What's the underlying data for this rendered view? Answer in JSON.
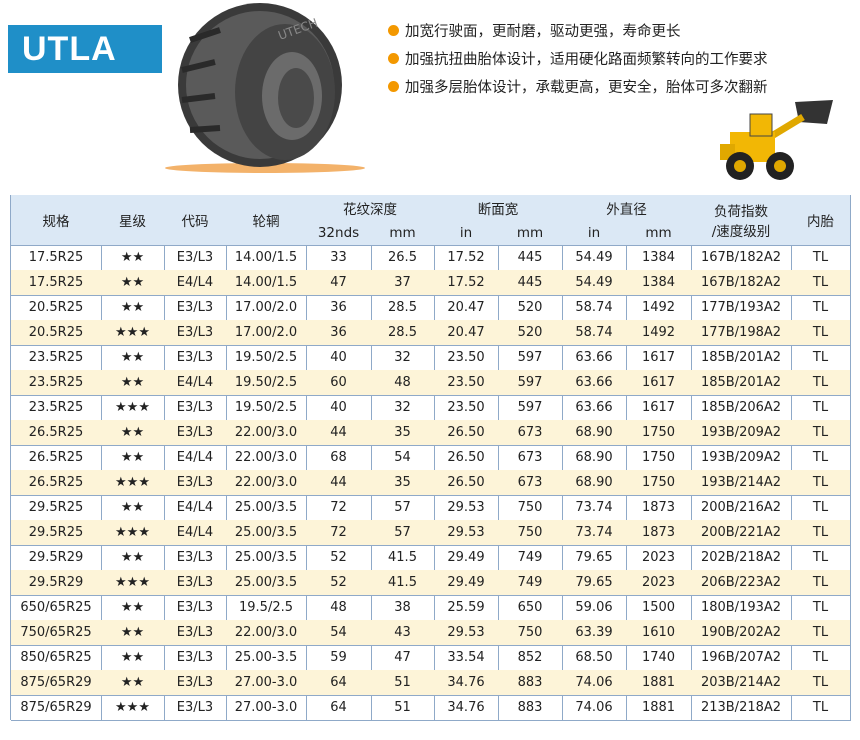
{
  "header": {
    "badge": "UTLA",
    "tire_brand": "UTECH",
    "bullets": [
      "加宽行驶面，更耐磨，驱动更强，寿命更长",
      "加强抗扭曲胎体设计，适用硬化路面频繁转向的工作要求",
      "加强多层胎体设计，承载更高，更安全，胎体可多次翻新"
    ]
  },
  "table": {
    "head": {
      "spec": "规格",
      "star": "星级",
      "code": "代码",
      "rim": "轮辋",
      "tread": "花纹深度",
      "tread_32": "32nds",
      "tread_mm": "mm",
      "width": "断面宽",
      "width_in": "in",
      "width_mm": "mm",
      "od": "外直径",
      "od_in": "in",
      "od_mm": "mm",
      "load_1": "负荷指数",
      "load_2": "/速度级别",
      "tube": "内胎"
    },
    "rows": [
      [
        "17.5R25",
        "★★",
        "E3/L3",
        "14.00/1.5",
        "33",
        "26.5",
        "17.52",
        "445",
        "54.49",
        "1384",
        "167B/182A2",
        "TL"
      ],
      [
        "17.5R25",
        "★★",
        "E4/L4",
        "14.00/1.5",
        "47",
        "37",
        "17.52",
        "445",
        "54.49",
        "1384",
        "167B/182A2",
        "TL"
      ],
      [
        "20.5R25",
        "★★",
        "E3/L3",
        "17.00/2.0",
        "36",
        "28.5",
        "20.47",
        "520",
        "58.74",
        "1492",
        "177B/193A2",
        "TL"
      ],
      [
        "20.5R25",
        "★★★",
        "E3/L3",
        "17.00/2.0",
        "36",
        "28.5",
        "20.47",
        "520",
        "58.74",
        "1492",
        "177B/198A2",
        "TL"
      ],
      [
        "23.5R25",
        "★★",
        "E3/L3",
        "19.50/2.5",
        "40",
        "32",
        "23.50",
        "597",
        "63.66",
        "1617",
        "185B/201A2",
        "TL"
      ],
      [
        "23.5R25",
        "★★",
        "E4/L4",
        "19.50/2.5",
        "60",
        "48",
        "23.50",
        "597",
        "63.66",
        "1617",
        "185B/201A2",
        "TL"
      ],
      [
        "23.5R25",
        "★★★",
        "E3/L3",
        "19.50/2.5",
        "40",
        "32",
        "23.50",
        "597",
        "63.66",
        "1617",
        "185B/206A2",
        "TL"
      ],
      [
        "26.5R25",
        "★★",
        "E3/L3",
        "22.00/3.0",
        "44",
        "35",
        "26.50",
        "673",
        "68.90",
        "1750",
        "193B/209A2",
        "TL"
      ],
      [
        "26.5R25",
        "★★",
        "E4/L4",
        "22.00/3.0",
        "68",
        "54",
        "26.50",
        "673",
        "68.90",
        "1750",
        "193B/209A2",
        "TL"
      ],
      [
        "26.5R25",
        "★★★",
        "E3/L3",
        "22.00/3.0",
        "44",
        "35",
        "26.50",
        "673",
        "68.90",
        "1750",
        "193B/214A2",
        "TL"
      ],
      [
        "29.5R25",
        "★★",
        "E4/L4",
        "25.00/3.5",
        "72",
        "57",
        "29.53",
        "750",
        "73.74",
        "1873",
        "200B/216A2",
        "TL"
      ],
      [
        "29.5R25",
        "★★★",
        "E4/L4",
        "25.00/3.5",
        "72",
        "57",
        "29.53",
        "750",
        "73.74",
        "1873",
        "200B/221A2",
        "TL"
      ],
      [
        "29.5R29",
        "★★",
        "E3/L3",
        "25.00/3.5",
        "52",
        "41.5",
        "29.49",
        "749",
        "79.65",
        "2023",
        "202B/218A2",
        "TL"
      ],
      [
        "29.5R29",
        "★★★",
        "E3/L3",
        "25.00/3.5",
        "52",
        "41.5",
        "29.49",
        "749",
        "79.65",
        "2023",
        "206B/223A2",
        "TL"
      ],
      [
        "650/65R25",
        "★★",
        "E3/L3",
        "19.5/2.5",
        "48",
        "38",
        "25.59",
        "650",
        "59.06",
        "1500",
        "180B/193A2",
        "TL"
      ],
      [
        "750/65R25",
        "★★",
        "E3/L3",
        "22.00/3.0",
        "54",
        "43",
        "29.53",
        "750",
        "63.39",
        "1610",
        "190B/202A2",
        "TL"
      ],
      [
        "850/65R25",
        "★★",
        "E3/L3",
        "25.00-3.5",
        "59",
        "47",
        "33.54",
        "852",
        "68.50",
        "1740",
        "196B/207A2",
        "TL"
      ],
      [
        "875/65R29",
        "★★",
        "E3/L3",
        "27.00-3.0",
        "64",
        "51",
        "34.76",
        "883",
        "74.06",
        "1881",
        "203B/214A2",
        "TL"
      ],
      [
        "875/65R29",
        "★★★",
        "E3/L3",
        "27.00-3.0",
        "64",
        "51",
        "34.76",
        "883",
        "74.06",
        "1881",
        "213B/218A2",
        "TL"
      ]
    ]
  }
}
